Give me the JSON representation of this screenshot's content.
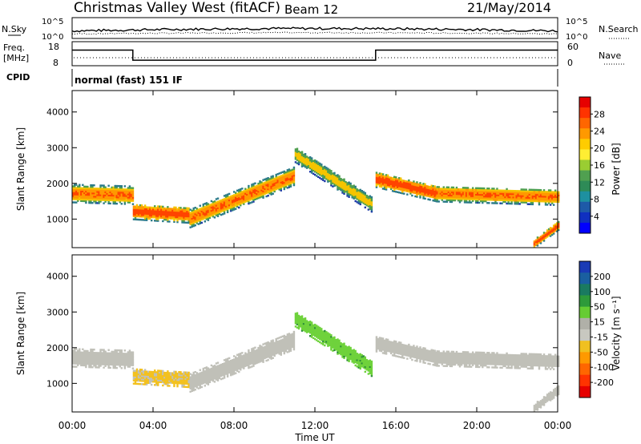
{
  "header": {
    "station": "Christmas Valley West (fitACF)",
    "beam": "Beam 12",
    "date": "21/May/2014"
  },
  "noise_panel": {
    "left_label": "N.Sky",
    "left_ticks": [
      "10^5",
      "10^0"
    ],
    "right_label": "N.Search",
    "right_ticks": [
      "10^5",
      "10^0"
    ]
  },
  "freq_panel": {
    "left_label_line1": "Freq.",
    "left_label_line2": "[MHz]",
    "left_ticks": [
      "18",
      "8"
    ],
    "right_label": "Nave",
    "right_ticks": [
      "60",
      "0"
    ],
    "freq_steps": [
      {
        "from_hour": 0,
        "to_hour": 3,
        "mhz": 14.5
      },
      {
        "from_hour": 3,
        "to_hour": 15,
        "mhz": 10.3
      },
      {
        "from_hour": 15,
        "to_hour": 24,
        "mhz": 14.5
      }
    ]
  },
  "cpid": {
    "label": "CPID",
    "value": "normal (fast) 151 IF"
  },
  "x_axis": {
    "label": "Time UT",
    "ticks": [
      "00:00",
      "04:00",
      "08:00",
      "12:00",
      "16:00",
      "20:00",
      "00:00"
    ]
  },
  "power_panel": {
    "y_label": "Slant Range [km]",
    "y_ticks": [
      "1000",
      "2000",
      "3000",
      "4000"
    ],
    "colorbar_label": "Power [dB]",
    "colorbar_ticks": [
      "28",
      "24",
      "20",
      "16",
      "12",
      "8",
      "4"
    ],
    "colors": [
      "#e60000",
      "#ff3300",
      "#ff6600",
      "#ff9900",
      "#ffcc00",
      "#ffee33",
      "#9acd32",
      "#50a050",
      "#2e8b57",
      "#1e90a0",
      "#1e5aa8",
      "#1030c0",
      "#0000ff"
    ]
  },
  "velocity_panel": {
    "y_label": "Slant Range [km]",
    "y_ticks": [
      "1000",
      "2000",
      "3000",
      "4000"
    ],
    "colorbar_label": "Velocity [m s⁻¹]",
    "colorbar_ticks": [
      "200",
      "100",
      "50",
      "15",
      "-15",
      "-50",
      "-100",
      "-200"
    ],
    "colors": [
      "#1a3bb5",
      "#1a5fa0",
      "#1a7a60",
      "#2e9a3a",
      "#66cc33",
      "#b0b0a8",
      "#c8c8c0",
      "#f0c020",
      "#ff9900",
      "#ff6600",
      "#ff3300",
      "#e60000"
    ]
  },
  "chart_data": {
    "type": "heatmap",
    "title": "Christmas Valley West (fitACF) Beam 12 21/May/2014",
    "xlabel": "Time UT",
    "ylabel": "Slant Range [km]",
    "xlim": [
      0,
      24
    ],
    "ylim": [
      200,
      4600
    ],
    "x_unit": "hours UT",
    "panels": [
      "Power [dB]",
      "Velocity [m s-1]"
    ],
    "bands": [
      {
        "t0": 0.0,
        "t1": 3.0,
        "r_center_start": 1700,
        "r_center_end": 1650,
        "width": 500,
        "power": 24,
        "velocity": 0
      },
      {
        "t0": 3.0,
        "t1": 5.8,
        "r_center_start": 1200,
        "r_center_end": 1100,
        "width": 450,
        "power": 26,
        "velocity": -20
      },
      {
        "t0": 5.8,
        "t1": 11.0,
        "r_center_start": 1000,
        "r_center_end": 2200,
        "width": 500,
        "power": 24,
        "velocity": 0
      },
      {
        "t0": 11.0,
        "t1": 14.8,
        "r_center_start": 2800,
        "r_center_end": 1400,
        "width": 450,
        "power": 18,
        "velocity": 40
      },
      {
        "t0": 15.0,
        "t1": 18.0,
        "r_center_start": 2100,
        "r_center_end": 1700,
        "width": 450,
        "power": 26,
        "velocity": 0
      },
      {
        "t0": 18.0,
        "t1": 24.0,
        "r_center_start": 1700,
        "r_center_end": 1600,
        "width": 450,
        "power": 24,
        "velocity": 0
      },
      {
        "t0": 22.8,
        "t1": 24.0,
        "r_center_start": 300,
        "r_center_end": 800,
        "width": 250,
        "power": 26,
        "velocity": 0
      }
    ]
  }
}
